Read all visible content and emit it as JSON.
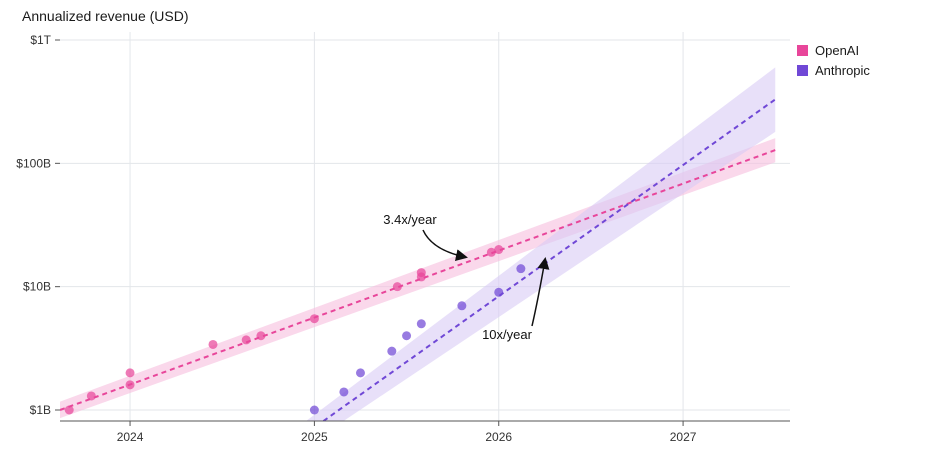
{
  "chart_data": {
    "type": "scatter",
    "title": "",
    "ylabel": "Annualized revenue (USD)",
    "xlabel": "",
    "y_scale": "log",
    "xlim": [
      2023.62,
      2027.58
    ],
    "ylim": [
      1000000000.0,
      1000000000000.0
    ],
    "x_ticks": [
      {
        "value": 2024,
        "label": "2024"
      },
      {
        "value": 2025,
        "label": "2025"
      },
      {
        "value": 2026,
        "label": "2026"
      },
      {
        "value": 2027,
        "label": "2027"
      }
    ],
    "y_ticks": [
      {
        "value": 1000000000.0,
        "label": "$1B"
      },
      {
        "value": 10000000000.0,
        "label": "$10B"
      },
      {
        "value": 100000000000.0,
        "label": "$100B"
      },
      {
        "value": 1000000000000.0,
        "label": "$1T"
      }
    ],
    "grid": "vertical",
    "legend": "top-right",
    "series": [
      {
        "name": "OpenAI",
        "color": "#e8469a",
        "band_color": "#f7bedd",
        "growth_label": "3.4x/year",
        "trend": {
          "x": [
            2023.62,
            2027.5
          ],
          "y": [
            1000000000.0,
            128000000000.0
          ]
        },
        "band": {
          "x": [
            2023.62,
            2027.5
          ],
          "lower": [
            860000000.0,
            102000000000.0
          ],
          "upper": [
            1170000000.0,
            160000000000.0
          ]
        },
        "points": [
          {
            "x": 2023.67,
            "y": 1000000000.0
          },
          {
            "x": 2023.79,
            "y": 1300000000.0
          },
          {
            "x": 2024.0,
            "y": 1600000000.0
          },
          {
            "x": 2024.0,
            "y": 2000000000.0
          },
          {
            "x": 2024.45,
            "y": 3400000000.0
          },
          {
            "x": 2024.63,
            "y": 3700000000.0
          },
          {
            "x": 2024.71,
            "y": 4000000000.0
          },
          {
            "x": 2025.0,
            "y": 5500000000.0
          },
          {
            "x": 2025.45,
            "y": 10000000000.0
          },
          {
            "x": 2025.58,
            "y": 12000000000.0
          },
          {
            "x": 2025.58,
            "y": 13000000000.0
          },
          {
            "x": 2025.96,
            "y": 19000000000.0
          },
          {
            "x": 2026.0,
            "y": 20000000000.0
          }
        ]
      },
      {
        "name": "Anthropic",
        "color": "#7048d6",
        "band_color": "#d9ccf5",
        "growth_label": "10x/year",
        "trend": {
          "x": [
            2024.85,
            2027.5
          ],
          "y": [
            500000000.0,
            330000000000.0
          ]
        },
        "band": {
          "x": [
            2024.85,
            2027.5
          ],
          "lower": [
            400000000.0,
            180000000000.0
          ],
          "upper": [
            620000000.0,
            600000000000.0
          ]
        },
        "points": [
          {
            "x": 2025.0,
            "y": 1000000000.0
          },
          {
            "x": 2025.16,
            "y": 1400000000.0
          },
          {
            "x": 2025.25,
            "y": 2000000000.0
          },
          {
            "x": 2025.42,
            "y": 3000000000.0
          },
          {
            "x": 2025.5,
            "y": 4000000000.0
          },
          {
            "x": 2025.58,
            "y": 5000000000.0
          },
          {
            "x": 2025.8,
            "y": 7000000000.0
          },
          {
            "x": 2026.0,
            "y": 9000000000.0
          },
          {
            "x": 2026.12,
            "y": 14000000000.0
          }
        ]
      }
    ],
    "annotations": [
      {
        "text": "3.4x/year",
        "series": "OpenAI"
      },
      {
        "text": "10x/year",
        "series": "Anthropic"
      }
    ]
  }
}
